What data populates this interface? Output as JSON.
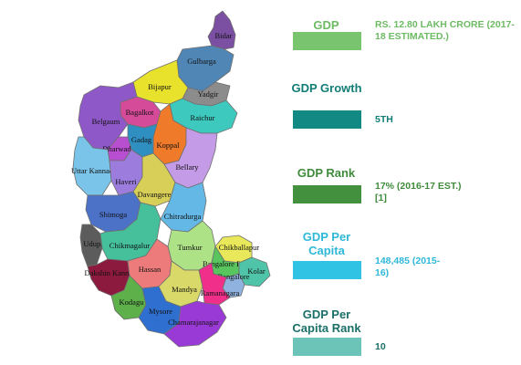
{
  "map": {
    "districts": [
      {
        "name": "Bidar",
        "color": "#7b4fa2"
      },
      {
        "name": "Gulbarga",
        "color": "#4f86b5"
      },
      {
        "name": "Yadgir",
        "color": "#8c8c8c"
      },
      {
        "name": "Bijapur",
        "color": "#e9e22d"
      },
      {
        "name": "Bagalkot",
        "color": "#d64a9a"
      },
      {
        "name": "Belgaum",
        "color": "#8f58c8"
      },
      {
        "name": "Raichur",
        "color": "#3ec9bf"
      },
      {
        "name": "Koppal",
        "color": "#ee7a2a"
      },
      {
        "name": "Gadag",
        "color": "#2f8fc1"
      },
      {
        "name": "Dharwad",
        "color": "#b84fd0"
      },
      {
        "name": "Bellary",
        "color": "#c49be6"
      },
      {
        "name": "Uttar Kannad",
        "color": "#79c4e8"
      },
      {
        "name": "Haveri",
        "color": "#9c7dde"
      },
      {
        "name": "Davangere",
        "color": "#d8cf59"
      },
      {
        "name": "Chitradurga",
        "color": "#64b8e6"
      },
      {
        "name": "Shimoga",
        "color": "#4c72c8"
      },
      {
        "name": "Udupi",
        "color": "#5c5c5c"
      },
      {
        "name": "Chikmagalur",
        "color": "#45c09a"
      },
      {
        "name": "Tumkur",
        "color": "#aee286"
      },
      {
        "name": "Chikballapur",
        "color": "#e8e85a"
      },
      {
        "name": "Dakshin Kannad",
        "color": "#8b1a3e"
      },
      {
        "name": "Hassan",
        "color": "#ee7b7b"
      },
      {
        "name": "Bangalore Rural",
        "color": "#58c55e"
      },
      {
        "name": "Kolar",
        "color": "#4fc4a8"
      },
      {
        "name": "Bangalore",
        "color": "#8fb2de"
      },
      {
        "name": "Mandya",
        "color": "#d9d96a"
      },
      {
        "name": "Ramanagara",
        "color": "#ef2f8a"
      },
      {
        "name": "Kodagu",
        "color": "#5db04a"
      },
      {
        "name": "Mysore",
        "color": "#2f6fd0"
      },
      {
        "name": "Chamarajanagar",
        "color": "#9a3ad6"
      }
    ]
  },
  "stats": [
    {
      "title": "GDP",
      "value": "RS. 12.80 LAKH CRORE  (2017-18 ESTIMATED.)",
      "bar_color": "#79c46f",
      "title_color": "#6dbb63",
      "value_color": "#6dbb63"
    },
    {
      "title": "GDP Growth",
      "value": "5TH",
      "bar_color": "#128a83",
      "title_color": "#127d77",
      "value_color": "#127d77"
    },
    {
      "title": "GDP Rank",
      "value": "17% (2016-17 EST.)[1]",
      "bar_color": "#43903f",
      "title_color": "#3f8b3b",
      "value_color": "#3f8b3b"
    },
    {
      "title": "GDP Per Capita",
      "value": "148,485 (2015-16)",
      "bar_color": "#31c3e3",
      "title_color": "#2fb8d8",
      "value_color": "#2fb8d8"
    },
    {
      "title": "GDP Per Capita Rank",
      "value": "10",
      "bar_color": "#6cc3b7",
      "title_color": "#1a6f69",
      "value_color": "#1a6f69"
    }
  ]
}
